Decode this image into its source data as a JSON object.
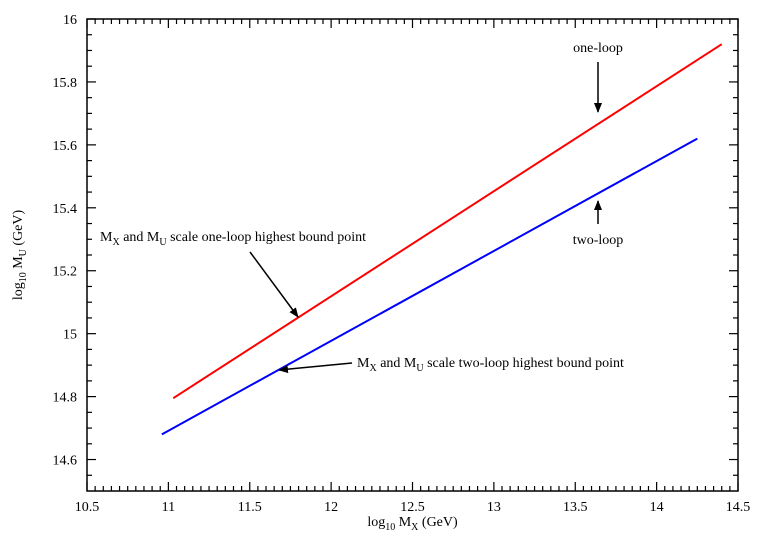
{
  "chart_data": {
    "type": "line",
    "x_label": [
      "log",
      "10",
      " M",
      "X",
      " (GeV)"
    ],
    "y_label": [
      "log",
      "10",
      " M",
      "U",
      " (GeV)"
    ],
    "xlim": [
      10.5,
      14.5
    ],
    "xticks": [
      10.5,
      11,
      11.5,
      12,
      12.5,
      13,
      13.5,
      14,
      14.5
    ],
    "ylim": [
      14.5,
      16
    ],
    "yticks": [
      14.6,
      14.8,
      15,
      15.2,
      15.4,
      15.6,
      15.8,
      16
    ],
    "series": [
      {
        "color": "#ff0000",
        "x": [
          11.03,
          14.4
        ],
        "values": [
          14.795,
          15.92
        ]
      },
      {
        "color": "#0000ff",
        "x": [
          10.96,
          14.25
        ],
        "values": [
          14.68,
          15.62
        ]
      }
    ],
    "annotations": [
      [
        "one-loop"
      ],
      [
        "two-loop"
      ],
      [
        "M",
        "X",
        " and M",
        "U",
        " scale one-loop highest bound point"
      ],
      [
        "M",
        "X",
        " and M",
        "U",
        " scale two-loop highest bound point"
      ]
    ]
  }
}
